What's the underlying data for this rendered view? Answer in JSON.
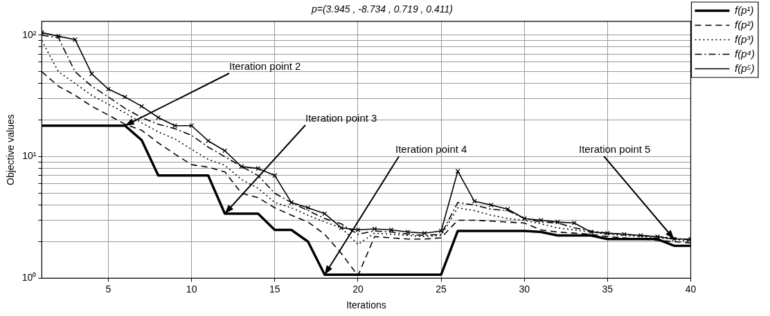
{
  "chart_data": {
    "type": "line",
    "title": "p=(3.945 , -8.734 , 0.719 , 0.411)",
    "xlabel": "Iterations",
    "ylabel": "Objective values",
    "x": [
      1,
      2,
      3,
      4,
      5,
      6,
      7,
      8,
      9,
      10,
      11,
      12,
      13,
      14,
      15,
      16,
      17,
      18,
      19,
      20,
      21,
      22,
      23,
      24,
      25,
      26,
      27,
      28,
      29,
      30,
      31,
      32,
      33,
      34,
      35,
      36,
      37,
      38,
      39,
      40
    ],
    "xlim": [
      1,
      40
    ],
    "xticks": [
      5,
      10,
      15,
      20,
      25,
      30,
      35,
      40
    ],
    "ylim": [
      1,
      130
    ],
    "log": true,
    "yticks": [
      {
        "value": 1,
        "label": "10⁰"
      },
      {
        "value": 2,
        "label": null
      },
      {
        "value": 3,
        "label": null
      },
      {
        "value": 4,
        "label": null
      },
      {
        "value": 5,
        "label": null
      },
      {
        "value": 6,
        "label": null
      },
      {
        "value": 7,
        "label": null
      },
      {
        "value": 8,
        "label": null
      },
      {
        "value": 9,
        "label": null
      },
      {
        "value": 10,
        "label": "10¹"
      },
      {
        "value": 20,
        "label": null
      },
      {
        "value": 30,
        "label": null
      },
      {
        "value": 40,
        "label": null
      },
      {
        "value": 50,
        "label": null
      },
      {
        "value": 60,
        "label": null
      },
      {
        "value": 70,
        "label": null
      },
      {
        "value": 80,
        "label": null
      },
      {
        "value": 90,
        "label": null
      },
      {
        "value": 100,
        "label": "10²"
      }
    ],
    "grid": true,
    "legend": "top right",
    "series": [
      {
        "name": "f(p¹)",
        "color": "#000000",
        "line_style": "solid",
        "marker": "none",
        "values": [
          18,
          18,
          18,
          18,
          18,
          18,
          13.7,
          7,
          7,
          7,
          7,
          3.4,
          3.4,
          3.4,
          2.5,
          2.5,
          2,
          1.07,
          1.07,
          1.07,
          1.07,
          1.07,
          1.07,
          1.07,
          1.07,
          2.45,
          2.45,
          2.45,
          2.45,
          2.45,
          2.4,
          2.25,
          2.25,
          2.25,
          2.1,
          2.1,
          2.1,
          2.1,
          1.85,
          1.85
        ]
      },
      {
        "name": "f(p²)",
        "color": "#000000",
        "line_style": "dashed",
        "marker": "none",
        "values": [
          50,
          38,
          32,
          26,
          22,
          18.5,
          16.5,
          13,
          10.5,
          8.6,
          8.2,
          7.5,
          5,
          4.6,
          3.8,
          3.3,
          2.9,
          2.3,
          1.6,
          1.05,
          2.2,
          2.15,
          2.1,
          2.1,
          2.15,
          3,
          3,
          2.95,
          2.9,
          2.85,
          2.5,
          2.4,
          2.35,
          2.3,
          2.2,
          2.15,
          2.1,
          2.05,
          2,
          1.95
        ]
      },
      {
        "name": "f(p³)",
        "color": "#000000",
        "line_style": "dotted",
        "marker": "none",
        "values": [
          90,
          50,
          40,
          32,
          27,
          23,
          19,
          16,
          14,
          11.5,
          9.5,
          8.5,
          6.5,
          5.5,
          4.2,
          3.8,
          3.3,
          2.9,
          2.6,
          1.9,
          2.35,
          2.3,
          2.25,
          2.2,
          2.25,
          3.8,
          3.6,
          3.3,
          3.1,
          3,
          2.8,
          2.6,
          2.5,
          2.4,
          2.3,
          2.25,
          2.2,
          2.15,
          2.1,
          2
        ]
      },
      {
        "name": "f(p⁴)",
        "color": "#000000",
        "line_style": "dashdot",
        "marker": "none",
        "values": [
          100,
          95,
          50,
          38,
          31,
          25,
          21,
          18.5,
          17,
          15,
          12,
          10,
          8.3,
          7,
          5,
          4.2,
          3.6,
          3.1,
          2.8,
          2.3,
          2.45,
          2.4,
          2.3,
          2.25,
          2.3,
          4.2,
          4,
          3.7,
          3.6,
          3.1,
          2.9,
          2.85,
          2.6,
          2.45,
          2.35,
          2.3,
          2.25,
          2.2,
          2.15,
          2.05
        ]
      },
      {
        "name": "f(p⁵)",
        "color": "#000000",
        "line_style": "solid",
        "marker": "cross",
        "values": [
          105,
          98,
          92,
          48,
          36,
          31,
          26,
          21,
          18,
          18,
          13.5,
          11.2,
          8.3,
          8,
          7,
          4.2,
          3.8,
          3.4,
          2.6,
          2.5,
          2.55,
          2.5,
          2.4,
          2.35,
          2.45,
          7.6,
          4.3,
          4,
          3.7,
          3.1,
          3,
          2.9,
          2.85,
          2.4,
          2.35,
          2.3,
          2.25,
          2.2,
          2.1,
          2.1
        ]
      }
    ],
    "annotations": [
      {
        "text": "Iteration point 2",
        "x": 6,
        "y": 18
      },
      {
        "text": "Iteration point 3",
        "x": 12,
        "y": 3.4
      },
      {
        "text": "Iteration point 4",
        "x": 18,
        "y": 1.07
      },
      {
        "text": "Iteration point 5",
        "x": 39,
        "y": 2.1
      }
    ]
  }
}
